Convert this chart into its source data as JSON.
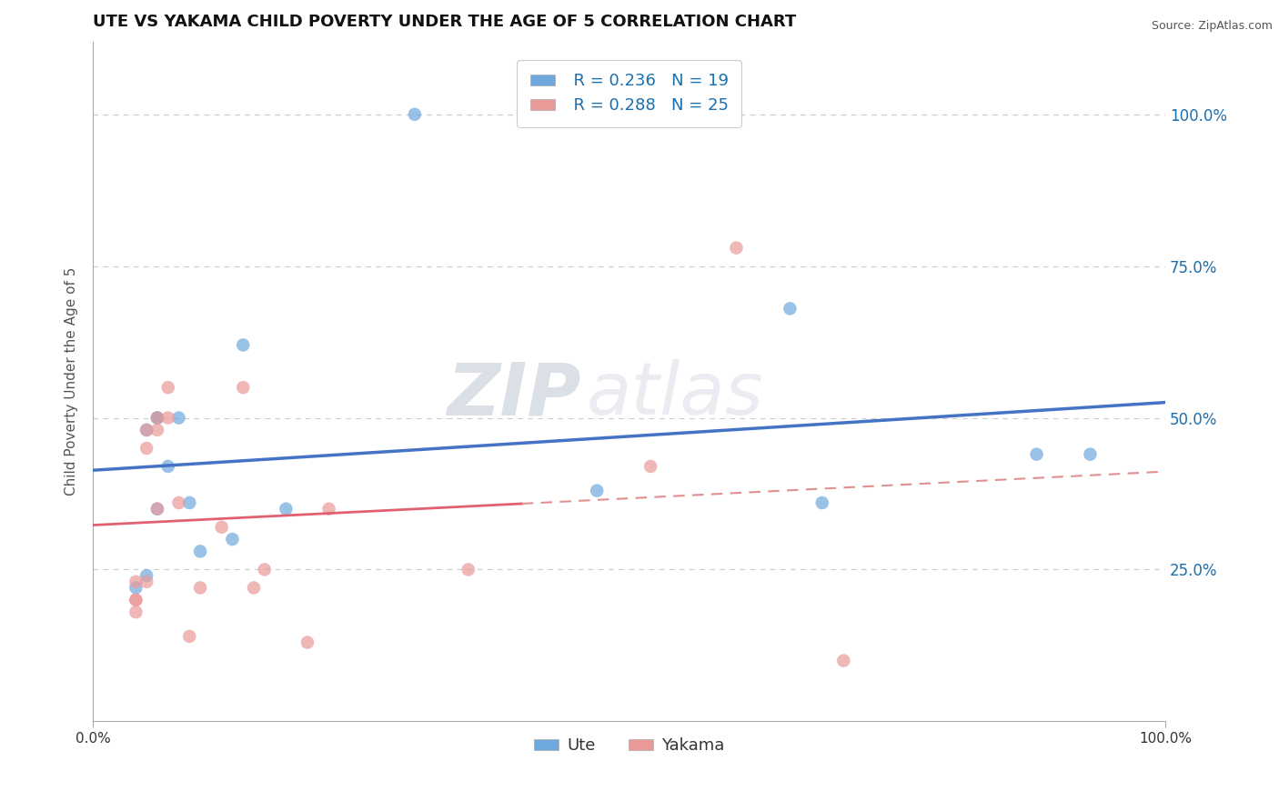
{
  "title": "UTE VS YAKAMA CHILD POVERTY UNDER THE AGE OF 5 CORRELATION CHART",
  "source": "Source: ZipAtlas.com",
  "ylabel": "Child Poverty Under the Age of 5",
  "ute_color": "#6fa8dc",
  "ute_edge_color": "#6fa8dc",
  "yakama_color": "#ea9999",
  "yakama_edge_color": "#ea9999",
  "ute_line_color": "#4472C4",
  "yakama_line_color": "#E06070",
  "yakama_dash_color": "#E09090",
  "ute_R": 0.236,
  "ute_N": 19,
  "yakama_R": 0.288,
  "yakama_N": 25,
  "ute_x": [
    0.3,
    0.04,
    0.05,
    0.05,
    0.06,
    0.06,
    0.06,
    0.07,
    0.08,
    0.09,
    0.1,
    0.13,
    0.14,
    0.18,
    0.47,
    0.65,
    0.68,
    0.88,
    0.93
  ],
  "ute_y": [
    1.0,
    0.22,
    0.24,
    0.48,
    0.5,
    0.5,
    0.35,
    0.42,
    0.5,
    0.36,
    0.28,
    0.3,
    0.62,
    0.35,
    0.38,
    0.68,
    0.36,
    0.44,
    0.44
  ],
  "yakama_x": [
    0.04,
    0.04,
    0.04,
    0.04,
    0.05,
    0.05,
    0.05,
    0.06,
    0.06,
    0.06,
    0.07,
    0.07,
    0.08,
    0.09,
    0.1,
    0.12,
    0.14,
    0.15,
    0.16,
    0.2,
    0.22,
    0.35,
    0.52,
    0.6,
    0.7
  ],
  "yakama_y": [
    0.18,
    0.2,
    0.2,
    0.23,
    0.23,
    0.45,
    0.48,
    0.35,
    0.48,
    0.5,
    0.5,
    0.55,
    0.36,
    0.14,
    0.22,
    0.32,
    0.55,
    0.22,
    0.25,
    0.13,
    0.35,
    0.25,
    0.42,
    0.78,
    0.1
  ],
  "xlim": [
    0.0,
    1.0
  ],
  "ylim": [
    0.0,
    1.12
  ],
  "xtick_labels": [
    "0.0%",
    "100.0%"
  ],
  "ytick_labels": [
    "25.0%",
    "50.0%",
    "75.0%",
    "100.0%"
  ],
  "ytick_positions": [
    0.25,
    0.5,
    0.75,
    1.0
  ],
  "title_fontsize": 13,
  "watermark": "ZIPatlas",
  "legend_fontsize": 13,
  "axis_label_fontsize": 11,
  "tick_fontsize": 11,
  "tick_color": "#1a6faf",
  "grid_color": "#cccccc",
  "top_line_color": "#cccccc"
}
